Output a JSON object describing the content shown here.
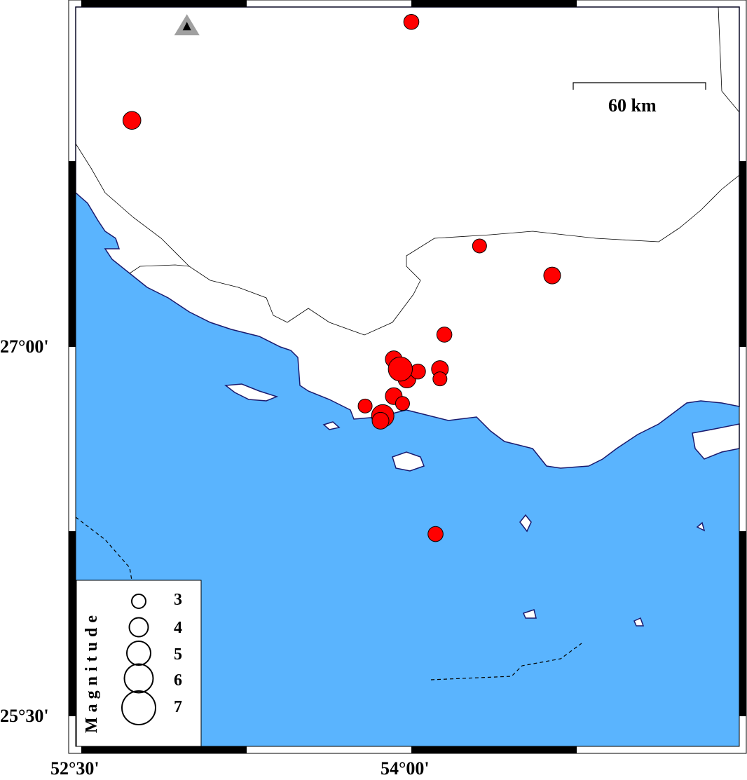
{
  "map": {
    "colors": {
      "sea": "#5ab4fe",
      "land": "#ffffff",
      "coast": "#1a1a6e",
      "quake": "#ff0000",
      "volcano": "#a0a0a0"
    },
    "frame": {
      "lon_min": 52.5,
      "lon_max": 55.5,
      "lat_ref": 27.0
    },
    "axis": {
      "x_labels": [
        {
          "lon": 52.5,
          "text": "52°30'"
        },
        {
          "lon": 54.0,
          "text": "54°00'"
        }
      ],
      "y_labels": [
        {
          "lat": 27.0,
          "text": "27°00'"
        },
        {
          "lat": 25.5,
          "text": "25°30'"
        }
      ]
    },
    "scale_bar": {
      "label": "60 km",
      "km": 60
    },
    "volcano": {
      "lon": 52.98,
      "lat": 28.3,
      "icon": "volcano-triangle-icon"
    },
    "earthquakes": [
      {
        "lon": 54.0,
        "lat": 28.32,
        "mag": 3.2
      },
      {
        "lon": 52.73,
        "lat": 27.92,
        "mag": 3.7
      },
      {
        "lon": 54.31,
        "lat": 27.41,
        "mag": 3.0
      },
      {
        "lon": 54.64,
        "lat": 27.29,
        "mag": 3.5
      },
      {
        "lon": 54.15,
        "lat": 27.05,
        "mag": 3.2
      },
      {
        "lon": 53.92,
        "lat": 26.95,
        "mag": 3.5
      },
      {
        "lon": 53.98,
        "lat": 26.87,
        "mag": 3.7
      },
      {
        "lon": 54.03,
        "lat": 26.9,
        "mag": 3.2
      },
      {
        "lon": 53.95,
        "lat": 26.91,
        "mag": 4.8
      },
      {
        "lon": 54.13,
        "lat": 26.91,
        "mag": 3.5
      },
      {
        "lon": 54.13,
        "lat": 26.87,
        "mag": 3.0
      },
      {
        "lon": 53.92,
        "lat": 26.8,
        "mag": 3.5
      },
      {
        "lon": 53.96,
        "lat": 26.77,
        "mag": 3.0
      },
      {
        "lon": 53.79,
        "lat": 26.76,
        "mag": 3.0
      },
      {
        "lon": 53.87,
        "lat": 26.72,
        "mag": 4.5
      },
      {
        "lon": 53.86,
        "lat": 26.7,
        "mag": 3.5
      },
      {
        "lon": 54.11,
        "lat": 26.24,
        "mag": 3.2
      }
    ],
    "legend": {
      "title": "Magnitude",
      "mags": [
        3,
        4,
        5,
        6,
        7
      ],
      "labels": [
        "3",
        "4",
        "5",
        "6",
        "7"
      ]
    }
  }
}
